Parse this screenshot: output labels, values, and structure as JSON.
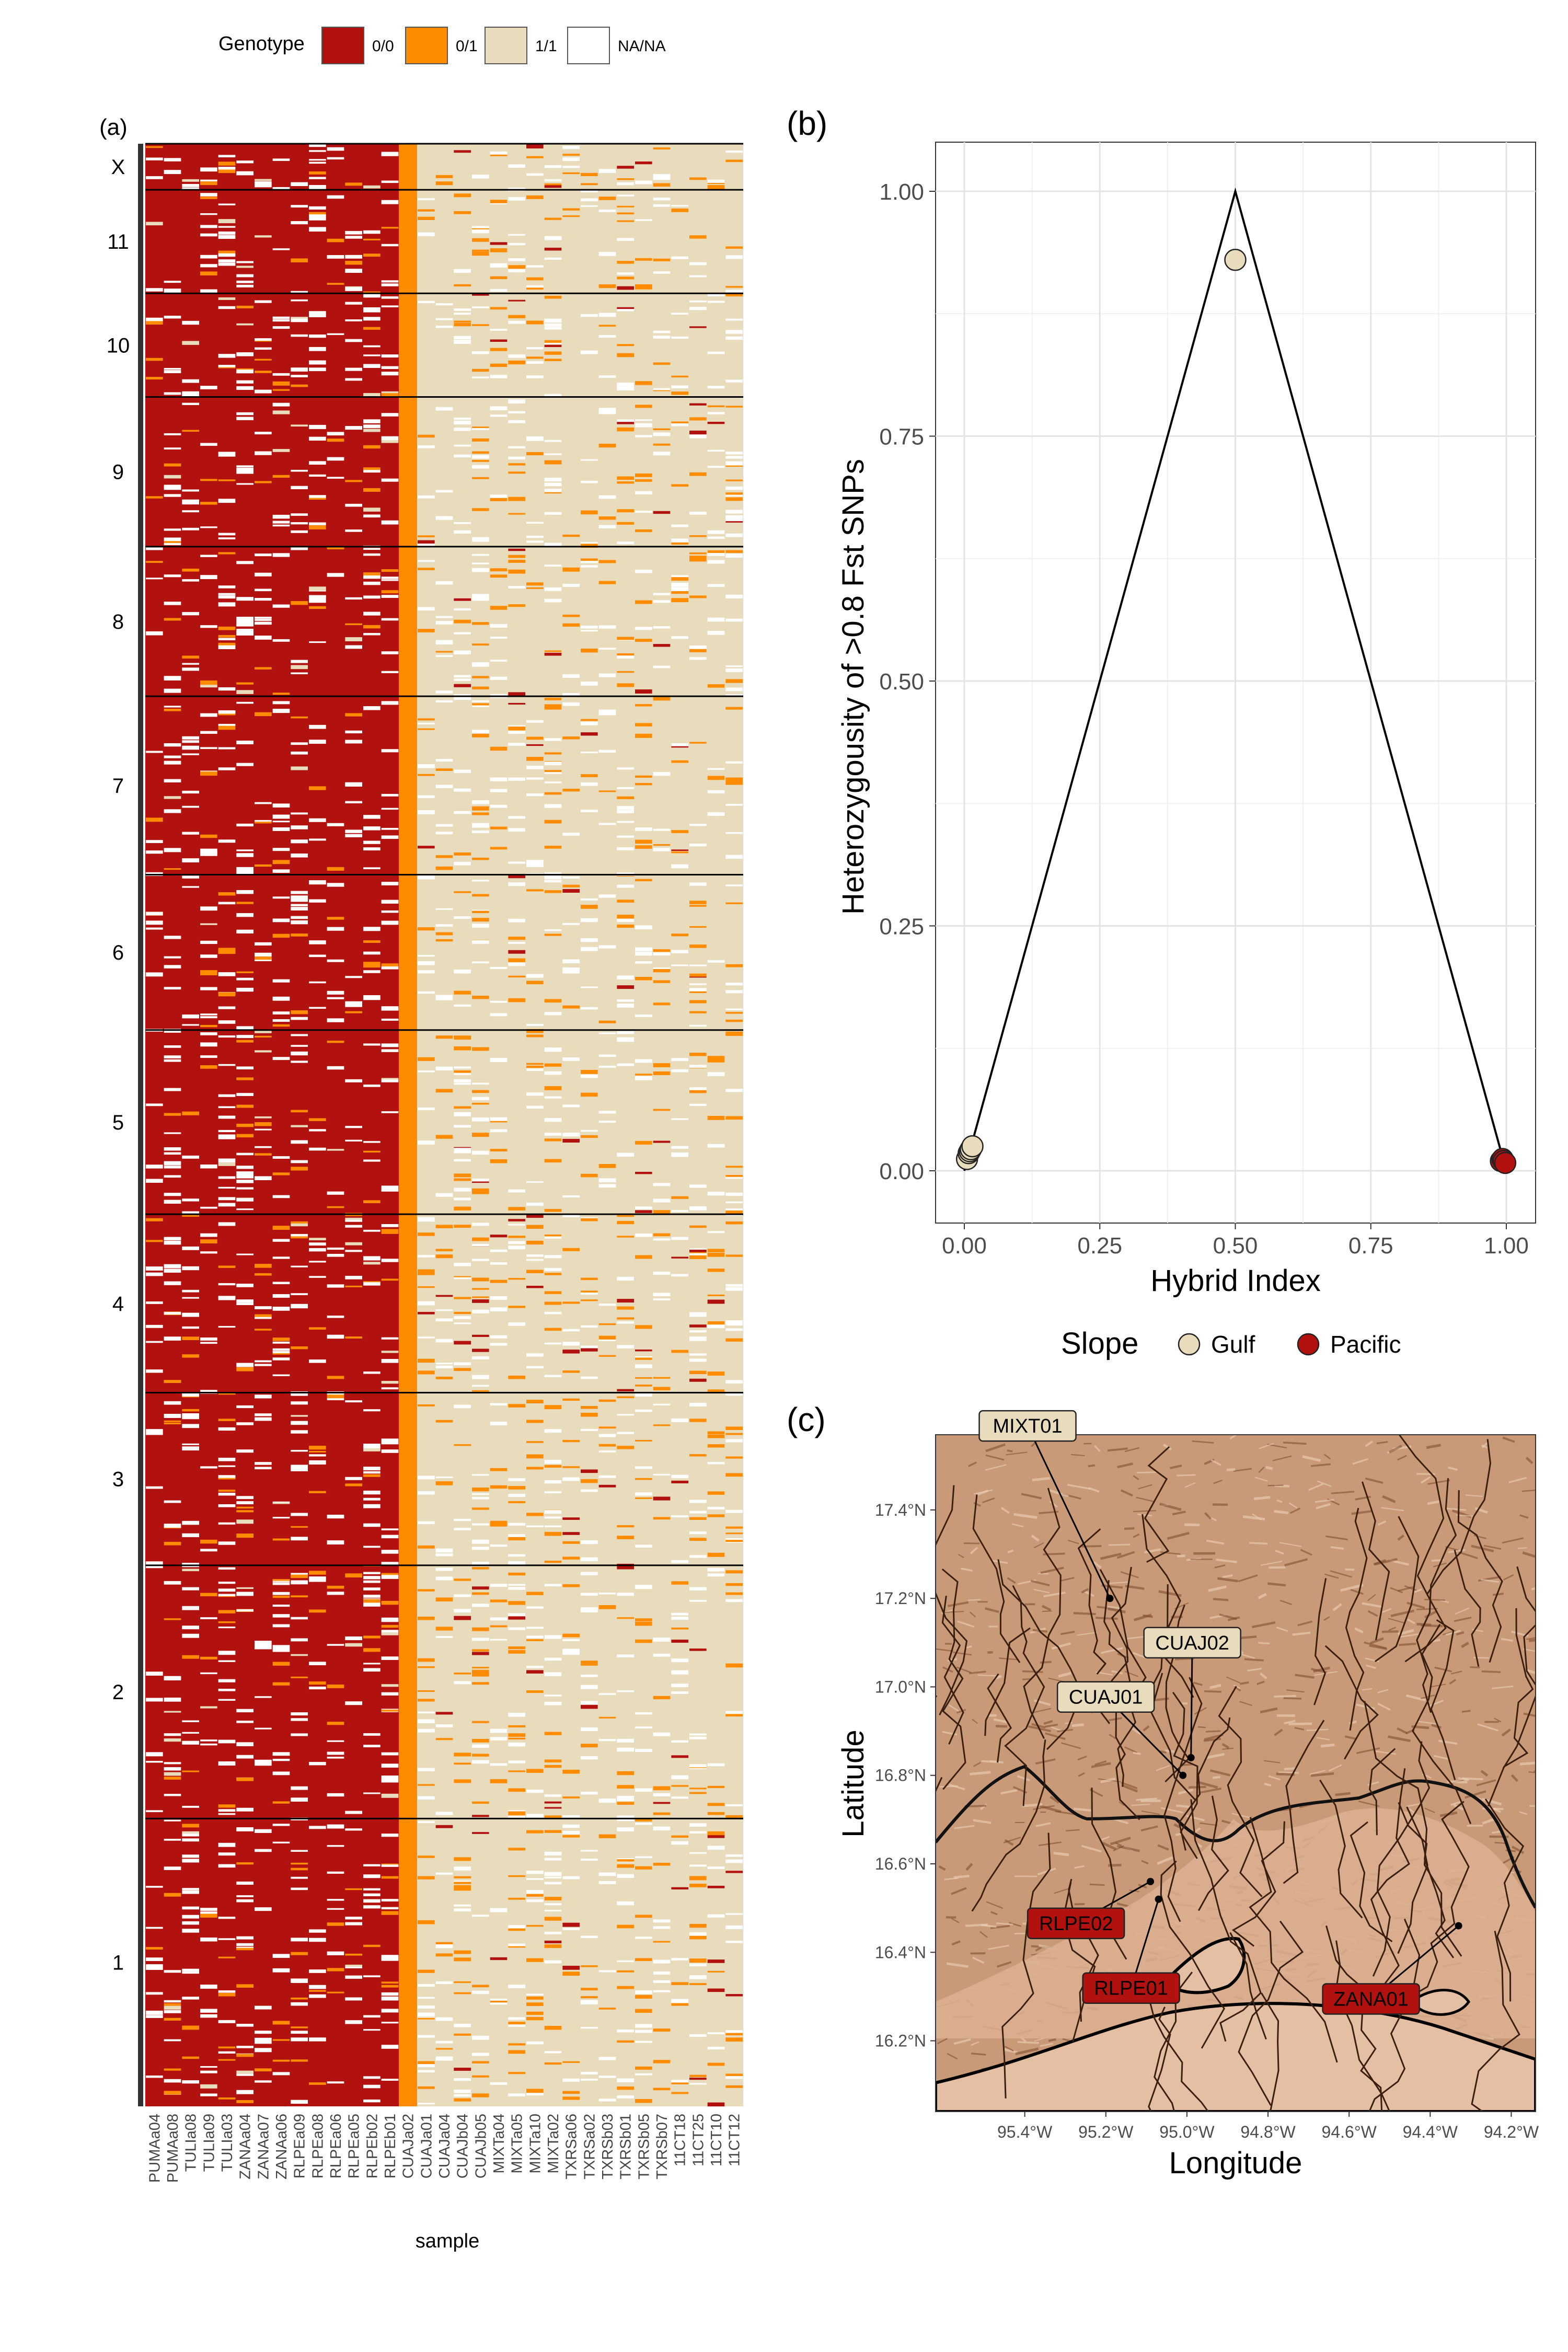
{
  "legend_genotype": {
    "title": "Genotype",
    "items": [
      {
        "label": "0/0",
        "color": "#B2120F"
      },
      {
        "label": "0/1",
        "color": "#FF8C00"
      },
      {
        "label": "1/1",
        "color": "#E8DCBC"
      },
      {
        "label": "NA/NA",
        "color": "#FFFFFF"
      }
    ]
  },
  "panel_labels": {
    "a": "(a)",
    "b": "(b)",
    "c": "(c)"
  },
  "colors": {
    "pacific": "#B2120F",
    "gulf": "#E8DCBC",
    "het": "#FF8C00",
    "terrain": "#C99A78",
    "coast": "#E4BFA3"
  },
  "chart_data": [
    {
      "panel": "(a)",
      "type": "heatmap",
      "xlabel": "sample",
      "ylabel": "",
      "samples": [
        "PUMAa04",
        "PUMAa08",
        "TULIa08",
        "TULIa09",
        "TULIa03",
        "ZANAa04",
        "ZANAa07",
        "ZANAa06",
        "RLPEa09",
        "RLPEa08",
        "RLPEa06",
        "RLPEa05",
        "RLPEb02",
        "RLPEb01",
        "CUAJa02",
        "CUAJa01",
        "CUAJa04",
        "CUAJb04",
        "CUAJb05",
        "MIXTa04",
        "MIXTa05",
        "MIXTa10",
        "MIXTa02",
        "TXRSa06",
        "TXRSa02",
        "TXRSb03",
        "TXRSb01",
        "TXRSb05",
        "TXRSb07",
        "11CT18",
        "11CT25",
        "11CT10",
        "11CT12"
      ],
      "sample_groups": {
        "homozygous_0_0": 14,
        "heterozygous_0_1": 1,
        "homozygous_1_1": 18
      },
      "chromosomes": [
        "X",
        "11",
        "10",
        "9",
        "8",
        "7",
        "6",
        "5",
        "4",
        "3",
        "2",
        "1"
      ],
      "chromosome_relative_sizes": [
        0.8,
        1.8,
        1.8,
        2.6,
        2.6,
        3.1,
        2.7,
        3.2,
        3.1,
        3.0,
        4.4,
        5.0
      ],
      "genotype_categories": [
        "0/0",
        "0/1",
        "1/1",
        "NA/NA"
      ]
    },
    {
      "panel": "(b)",
      "type": "scatter",
      "xlabel": "Hybrid Index",
      "ylabel": "Heterozygousity of >0.8 Fst SNPs",
      "xlim": [
        0,
        1
      ],
      "ylim": [
        0,
        1
      ],
      "xticks": [
        "0.00",
        "0.25",
        "0.50",
        "0.75",
        "1.00"
      ],
      "yticks": [
        "0.00",
        "0.25",
        "0.50",
        "0.75",
        "1.00"
      ],
      "triangle": [
        [
          0,
          0
        ],
        [
          0.5,
          1
        ],
        [
          1,
          0
        ]
      ],
      "legend_title": "Slope",
      "series": [
        {
          "name": "Gulf",
          "color": "#E8DCBC",
          "points": [
            [
              0.005,
              0.012
            ],
            [
              0.008,
              0.018
            ],
            [
              0.01,
              0.02
            ],
            [
              0.012,
              0.022
            ],
            [
              0.015,
              0.025
            ],
            [
              0.5,
              0.93
            ]
          ]
        },
        {
          "name": "Pacific",
          "color": "#B2120F",
          "points": [
            [
              0.99,
              0.01
            ],
            [
              0.993,
              0.012
            ],
            [
              0.995,
              0.01
            ],
            [
              0.998,
              0.008
            ]
          ]
        }
      ]
    },
    {
      "panel": "(c)",
      "type": "map",
      "xlabel": "Longitude",
      "ylabel": "Latitude",
      "lon_range": [
        -95.62,
        -94.14
      ],
      "lat_range": [
        16.04,
        17.57
      ],
      "xticks": [
        {
          "lon": -95.4,
          "label": "95.4°W"
        },
        {
          "lon": -95.2,
          "label": "95.2°W"
        },
        {
          "lon": -95.0,
          "label": "95.0°W"
        },
        {
          "lon": -94.8,
          "label": "94.8°W"
        },
        {
          "lon": -94.6,
          "label": "94.6°W"
        },
        {
          "lon": -94.4,
          "label": "94.4°W"
        },
        {
          "lon": -94.2,
          "label": "94.2°W"
        }
      ],
      "yticks": [
        {
          "lat": 16.2,
          "label": "16.2°N"
        },
        {
          "lat": 16.4,
          "label": "16.4°N"
        },
        {
          "lat": 16.6,
          "label": "16.6°N"
        },
        {
          "lat": 16.8,
          "label": "16.8°N"
        },
        {
          "lat": 17.0,
          "label": "17.0°N"
        },
        {
          "lat": 17.2,
          "label": "17.2°N"
        },
        {
          "lat": 17.4,
          "label": "17.4°N"
        }
      ],
      "sites": [
        {
          "name": "MIXT01",
          "lon": -95.19,
          "lat": 17.2,
          "slope": "Gulf"
        },
        {
          "name": "CUAJ02",
          "lon": -94.99,
          "lat": 16.84,
          "slope": "Gulf"
        },
        {
          "name": "CUAJ01",
          "lon": -95.01,
          "lat": 16.8,
          "slope": "Gulf"
        },
        {
          "name": "RLPE02",
          "lon": -95.09,
          "lat": 16.56,
          "slope": "Pacific"
        },
        {
          "name": "RLPE01",
          "lon": -95.07,
          "lat": 16.52,
          "slope": "Pacific"
        },
        {
          "name": "ZANA01",
          "lon": -94.33,
          "lat": 16.46,
          "slope": "Pacific"
        }
      ]
    }
  ]
}
